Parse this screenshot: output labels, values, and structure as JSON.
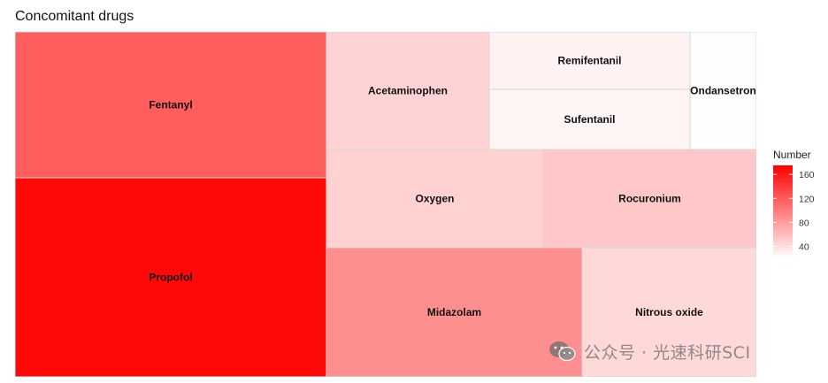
{
  "chart_data": {
    "type": "treemap",
    "title": "Concomitant drugs",
    "legend": {
      "title": "Number",
      "ticks": [
        40,
        80,
        120,
        160
      ],
      "min": 20,
      "max": 175,
      "placement": "right"
    },
    "colors": {
      "low": "#ffffff",
      "high": "#ff0000"
    },
    "cells": [
      {
        "name": "Propofol",
        "value": 170
      },
      {
        "name": "Fentanyl",
        "value": 118
      },
      {
        "name": "Midazolam",
        "value": 88
      },
      {
        "name": "Rocuronium",
        "value": 54
      },
      {
        "name": "Oxygen",
        "value": 48
      },
      {
        "name": "Nitrous oxide",
        "value": 44
      },
      {
        "name": "Acetaminophen",
        "value": 47
      },
      {
        "name": "Remifentanil",
        "value": 28
      },
      {
        "name": "Sufentanil",
        "value": 26
      },
      {
        "name": "Ondansetron",
        "value": 21
      }
    ]
  },
  "watermark": {
    "icon": "wechat-icon",
    "text": "公众号 · 光速科研SCI"
  }
}
